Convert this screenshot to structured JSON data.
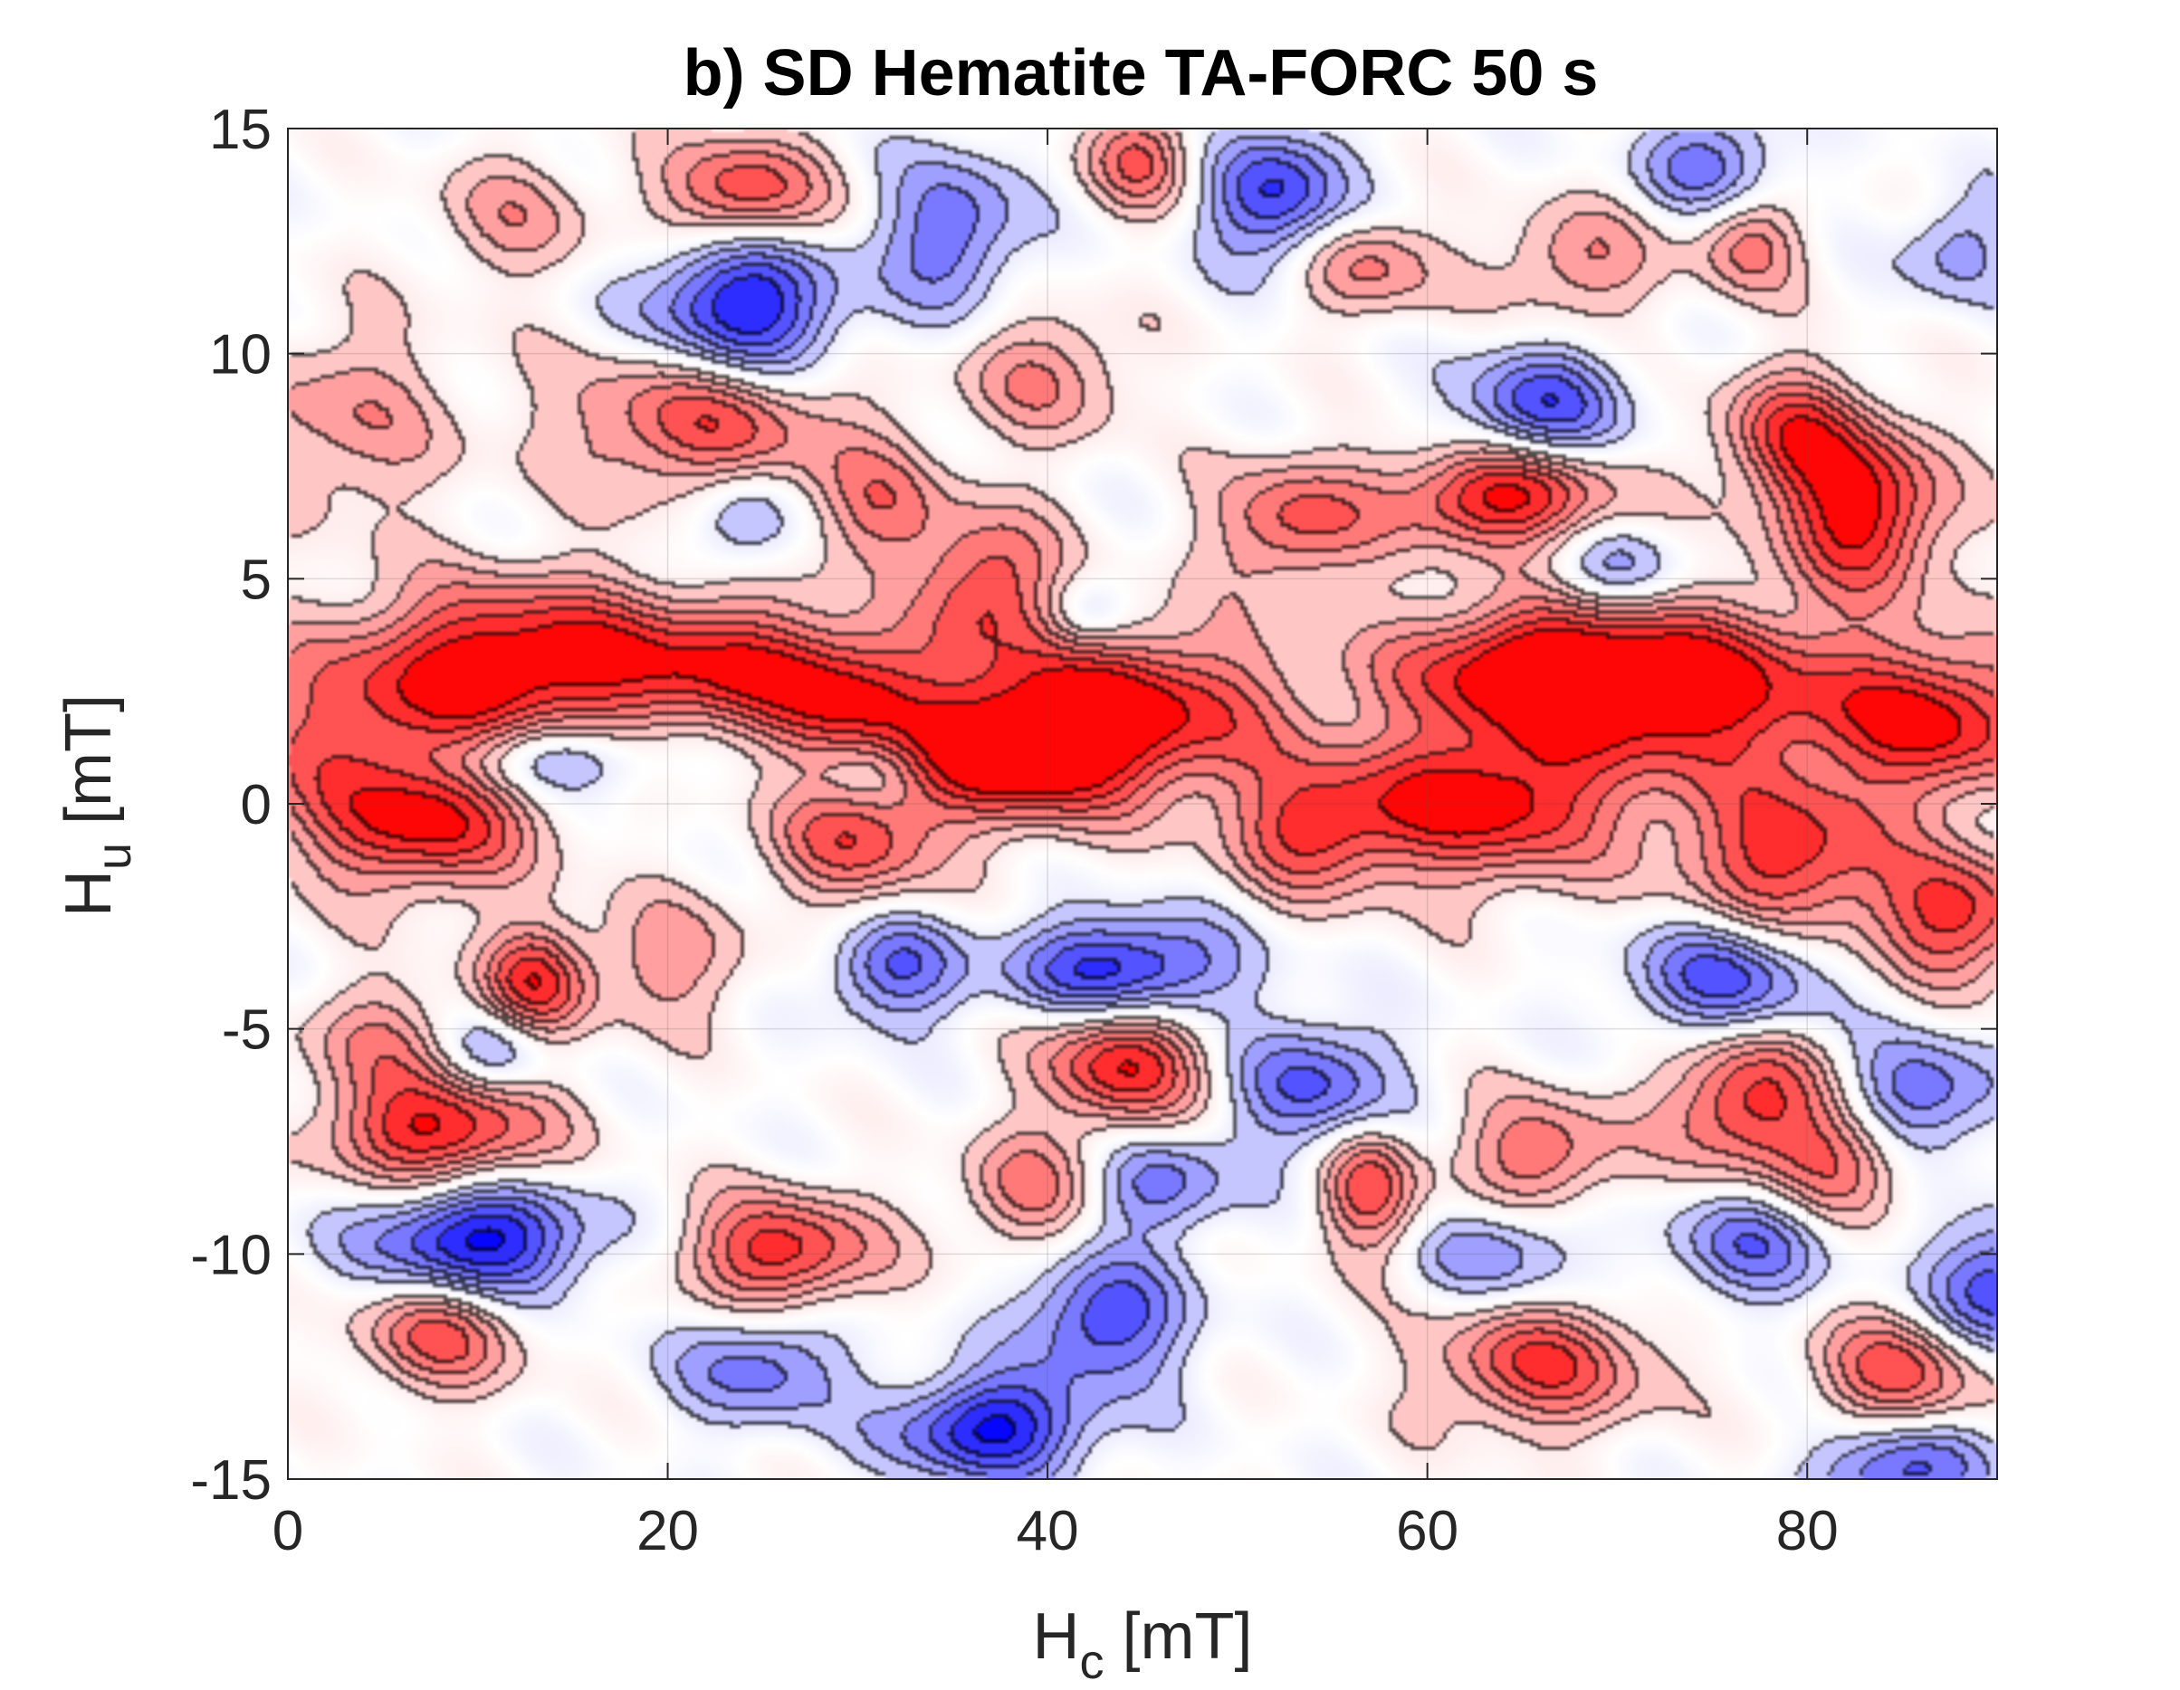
{
  "chart_data": {
    "type": "heatmap",
    "title": "b) SD Hematite TA-FORC 50 s",
    "xlabel": {
      "main": "H",
      "sub": "c",
      "unit": " [mT]"
    },
    "ylabel": {
      "main": "H",
      "sub": "u",
      "unit": " [mT]"
    },
    "xlim": [
      0,
      90
    ],
    "ylim": [
      -15,
      15
    ],
    "xticks": [
      0,
      20,
      40,
      60,
      80
    ],
    "xtick_labels": [
      "0",
      "20",
      "40",
      "60",
      "80"
    ],
    "yticks": [
      -15,
      -10,
      -5,
      0,
      5,
      10,
      15
    ],
    "ytick_labels": [
      "-15",
      "-10",
      "-5",
      "0",
      "5",
      "10",
      "15"
    ],
    "grid": true,
    "colormap": {
      "negative": "#0000ff",
      "zero": "#ffffff",
      "positive": "#ff0000"
    },
    "contour_levels": [
      -0.9,
      -0.75,
      -0.6,
      -0.45,
      -0.3,
      -0.15,
      0.15,
      0.3,
      0.45,
      0.6,
      0.75,
      0.9
    ],
    "description_of_features": "Horizontal positive ridge near Hu approx 0 to 3 mT across all Hc, scattered positive and negative lobes elsewhere",
    "features": [
      {
        "hc": 13,
        "hu": 3.2,
        "amp": 1.0,
        "sx": 6,
        "sy": 1.2
      },
      {
        "hc": 24,
        "hu": 3.0,
        "amp": 0.7,
        "sx": 4,
        "sy": 1.0
      },
      {
        "hc": 4,
        "hu": 1.5,
        "amp": 0.6,
        "sx": 6,
        "sy": 1.5
      },
      {
        "hc": 30,
        "hu": 2.3,
        "amp": 0.75,
        "sx": 3,
        "sy": 1.0
      },
      {
        "hc": 44,
        "hu": 2.0,
        "amp": 1.0,
        "sx": 6,
        "sy": 1.3
      },
      {
        "hc": 38,
        "hu": 1.0,
        "amp": 0.9,
        "sx": 4,
        "sy": 1.0
      },
      {
        "hc": 65,
        "hu": 3.0,
        "amp": 0.9,
        "sx": 5,
        "sy": 1.0
      },
      {
        "hc": 74,
        "hu": 2.5,
        "amp": 1.0,
        "sx": 6,
        "sy": 1.3
      },
      {
        "hc": 87,
        "hu": 1.8,
        "amp": 0.9,
        "sx": 4,
        "sy": 1.2
      },
      {
        "hc": 63,
        "hu": 0.0,
        "amp": 1.0,
        "sx": 5,
        "sy": 1.2
      },
      {
        "hc": 7,
        "hu": -0.6,
        "amp": 0.8,
        "sx": 4,
        "sy": 1.0
      },
      {
        "hc": 30,
        "hu": -0.8,
        "amp": 0.7,
        "sx": 3,
        "sy": 1.0
      },
      {
        "hc": 54,
        "hu": -0.6,
        "amp": 0.7,
        "sx": 3,
        "sy": 1.0
      },
      {
        "hc": 79,
        "hu": -1.2,
        "amp": 0.85,
        "sx": 4,
        "sy": 1.3
      },
      {
        "hc": 14,
        "hu": 1.0,
        "amp": -0.55,
        "sx": 4,
        "sy": 0.6
      },
      {
        "hc": 31,
        "hu": 0.7,
        "amp": -0.3,
        "sx": 2,
        "sy": 0.6
      },
      {
        "hc": 24,
        "hu": 11.0,
        "amp": -1.0,
        "sx": 3.5,
        "sy": 1.2
      },
      {
        "hc": 24,
        "hu": 13.5,
        "amp": 0.8,
        "sx": 3,
        "sy": 0.9
      },
      {
        "hc": 35,
        "hu": 12.7,
        "amp": -0.6,
        "sx": 2.5,
        "sy": 1.2
      },
      {
        "hc": 52,
        "hu": 13.5,
        "amp": -0.8,
        "sx": 2.5,
        "sy": 1.0
      },
      {
        "hc": 75,
        "hu": 14.2,
        "amp": -0.55,
        "sx": 2.5,
        "sy": 0.8
      },
      {
        "hc": 66,
        "hu": 8.8,
        "amp": -0.7,
        "sx": 3,
        "sy": 0.9
      },
      {
        "hc": 22,
        "hu": 8.5,
        "amp": 0.75,
        "sx": 5,
        "sy": 1.2
      },
      {
        "hc": 40,
        "hu": 9.5,
        "amp": 0.45,
        "sx": 3,
        "sy": 1.0
      },
      {
        "hc": 64,
        "hu": 6.8,
        "amp": 1.0,
        "sx": 4,
        "sy": 0.8
      },
      {
        "hc": 83,
        "hu": 6.5,
        "amp": 1.0,
        "sx": 3,
        "sy": 1.3
      },
      {
        "hc": 79,
        "hu": 8.2,
        "amp": 0.7,
        "sx": 2.5,
        "sy": 1.0
      },
      {
        "hc": 37,
        "hu": 4.8,
        "amp": 0.75,
        "sx": 2.5,
        "sy": 1.2
      },
      {
        "hc": 53,
        "hu": 6.2,
        "amp": 0.65,
        "sx": 3,
        "sy": 1.0
      },
      {
        "hc": 31,
        "hu": 6.5,
        "amp": 0.5,
        "sx": 2.5,
        "sy": 1.0
      },
      {
        "hc": 24,
        "hu": 6.3,
        "amp": -0.45,
        "sx": 2,
        "sy": 0.8
      },
      {
        "hc": 42,
        "hu": 4.2,
        "amp": -0.35,
        "sx": 1.5,
        "sy": 0.6
      },
      {
        "hc": 44,
        "hu": -3.7,
        "amp": -0.9,
        "sx": 4,
        "sy": 0.8
      },
      {
        "hc": 32,
        "hu": -3.7,
        "amp": -0.6,
        "sx": 2.5,
        "sy": 0.8
      },
      {
        "hc": 76,
        "hu": -3.9,
        "amp": -0.75,
        "sx": 3.5,
        "sy": 1.0
      },
      {
        "hc": 44,
        "hu": -5.8,
        "amp": 0.9,
        "sx": 3,
        "sy": 1.0
      },
      {
        "hc": 13,
        "hu": -4.0,
        "amp": 0.8,
        "sx": 2,
        "sy": 0.9
      },
      {
        "hc": 88,
        "hu": -2.5,
        "amp": 0.8,
        "sx": 3,
        "sy": 1.0
      },
      {
        "hc": 8,
        "hu": -7.3,
        "amp": 0.95,
        "sx": 4,
        "sy": 0.9
      },
      {
        "hc": 10,
        "hu": -9.7,
        "amp": -1.0,
        "sx": 4,
        "sy": 0.9
      },
      {
        "hc": 26,
        "hu": -10.0,
        "amp": 0.85,
        "sx": 3.5,
        "sy": 0.9
      },
      {
        "hc": 54,
        "hu": -6.3,
        "amp": -0.65,
        "sx": 3,
        "sy": 1.0
      },
      {
        "hc": 77,
        "hu": -6.6,
        "amp": 0.85,
        "sx": 3,
        "sy": 1.2
      },
      {
        "hc": 86,
        "hu": -6.5,
        "amp": -0.6,
        "sx": 3,
        "sy": 0.9
      },
      {
        "hc": 57,
        "hu": -8.6,
        "amp": 0.7,
        "sx": 1.8,
        "sy": 1.0
      },
      {
        "hc": 66,
        "hu": -7.8,
        "amp": 0.6,
        "sx": 3,
        "sy": 0.9
      },
      {
        "hc": 46,
        "hu": -8.5,
        "amp": -0.55,
        "sx": 2.5,
        "sy": 0.8
      },
      {
        "hc": 43,
        "hu": -11.5,
        "amp": -0.75,
        "sx": 3,
        "sy": 1.0
      },
      {
        "hc": 37,
        "hu": -13.9,
        "amp": -0.95,
        "sx": 3.5,
        "sy": 0.8
      },
      {
        "hc": 25,
        "hu": -12.5,
        "amp": -0.55,
        "sx": 3,
        "sy": 0.9
      },
      {
        "hc": 8,
        "hu": -11.8,
        "amp": 0.65,
        "sx": 3,
        "sy": 0.9
      },
      {
        "hc": 66,
        "hu": -12.5,
        "amp": 0.75,
        "sx": 4,
        "sy": 1.0
      },
      {
        "hc": 85,
        "hu": -12.7,
        "amp": 0.7,
        "sx": 3,
        "sy": 1.0
      },
      {
        "hc": 90,
        "hu": -10.8,
        "amp": -0.8,
        "sx": 2.5,
        "sy": 1.0
      },
      {
        "hc": 77,
        "hu": -9.8,
        "amp": -0.55,
        "sx": 3,
        "sy": 0.9
      },
      {
        "hc": 82,
        "hu": -8.0,
        "amp": 0.55,
        "sx": 2.5,
        "sy": 0.9
      },
      {
        "hc": 39,
        "hu": -8.6,
        "amp": 0.5,
        "sx": 2.5,
        "sy": 0.9
      },
      {
        "hc": 64,
        "hu": -10.0,
        "amp": -0.45,
        "sx": 3,
        "sy": 0.8
      },
      {
        "hc": 85,
        "hu": -14.8,
        "amp": -0.75,
        "sx": 3,
        "sy": 0.8
      },
      {
        "hc": 12,
        "hu": 13.0,
        "amp": 0.35,
        "sx": 3,
        "sy": 1.0
      },
      {
        "hc": 3,
        "hu": 8.5,
        "amp": 0.4,
        "sx": 4,
        "sy": 1.5
      },
      {
        "hc": 88,
        "hu": 12.3,
        "amp": -0.4,
        "sx": 2,
        "sy": 0.8
      },
      {
        "hc": 45,
        "hu": 14.3,
        "amp": 0.6,
        "sx": 2,
        "sy": 0.8
      },
      {
        "hc": 57,
        "hu": 11.9,
        "amp": 0.5,
        "sx": 2.5,
        "sy": 0.8
      },
      {
        "hc": 68,
        "hu": 12.0,
        "amp": 0.45,
        "sx": 3,
        "sy": 0.9
      },
      {
        "hc": 77,
        "hu": 12.4,
        "amp": 0.5,
        "sx": 2,
        "sy": 0.8
      },
      {
        "hc": 70,
        "hu": 5.2,
        "amp": -0.4,
        "sx": 2.5,
        "sy": 0.7
      },
      {
        "hc": 5,
        "hu": -5.2,
        "amp": 0.4,
        "sx": 3,
        "sy": 0.9
      },
      {
        "hc": 11,
        "hu": -5.5,
        "amp": -0.45,
        "sx": 2,
        "sy": 0.7
      },
      {
        "hc": 20,
        "hu": -3.5,
        "amp": 0.4,
        "sx": 3,
        "sy": 1.0
      }
    ]
  }
}
